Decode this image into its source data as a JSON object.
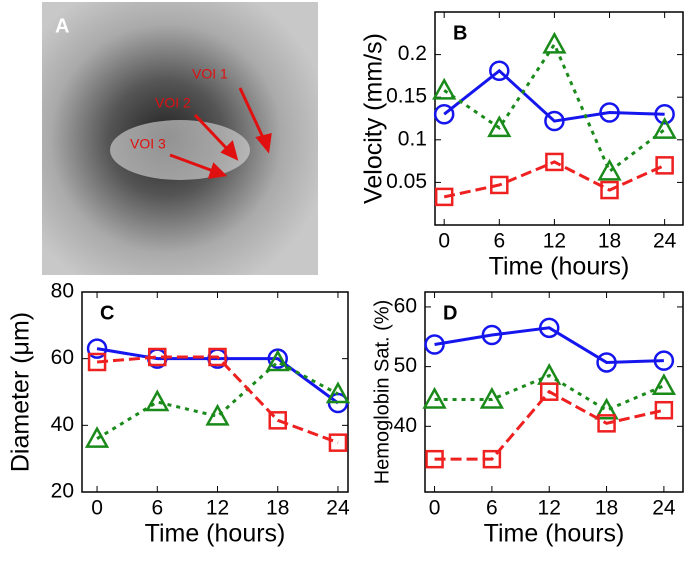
{
  "panel_a": {
    "label": "A",
    "annotations": [
      "VOI 1",
      "VOI 2",
      "VOI 3"
    ]
  },
  "chart_data": [
    {
      "type": "line",
      "label": "B",
      "xlabel": "Time (hours)",
      "ylabel": "Velocity (mm/s)",
      "x": [
        0,
        6,
        12,
        18,
        24
      ],
      "xlim": [
        -1,
        26
      ],
      "xticks": [
        0,
        6,
        12,
        18,
        24
      ],
      "ylim": [
        0,
        0.25
      ],
      "yticks": [
        0.05,
        0.1,
        0.15,
        0.2
      ],
      "series": [
        {
          "color": "#1515ee",
          "marker": "circle",
          "dashed": false,
          "values": [
            0.13,
            0.181,
            0.122,
            0.132,
            0.13
          ]
        },
        {
          "color": "#1a8a1a",
          "marker": "triangle",
          "dashed": true,
          "values": [
            0.158,
            0.114,
            0.212,
            0.063,
            0.112
          ]
        },
        {
          "color": "#ee2020",
          "marker": "square",
          "dashed": true,
          "values": [
            0.033,
            0.047,
            0.074,
            0.041,
            0.07
          ]
        }
      ]
    },
    {
      "type": "line",
      "label": "C",
      "xlabel": "Time (hours)",
      "ylabel": "Diameter (μm)",
      "x": [
        0,
        6,
        12,
        18,
        24
      ],
      "xlim": [
        -1.5,
        25
      ],
      "xticks": [
        0,
        6,
        12,
        18,
        24
      ],
      "ylim": [
        20,
        80
      ],
      "yticks": [
        20,
        40,
        60,
        80
      ],
      "series": [
        {
          "color": "#1515ee",
          "marker": "circle",
          "dashed": false,
          "values": [
            63,
            60,
            60,
            60,
            46.7
          ]
        },
        {
          "color": "#1a8a1a",
          "marker": "triangle",
          "dashed": true,
          "values": [
            36,
            47,
            42.7,
            59,
            49.4
          ]
        },
        {
          "color": "#ee2020",
          "marker": "square",
          "dashed": true,
          "values": [
            59,
            60.5,
            60.5,
            41.5,
            34.8
          ]
        }
      ]
    },
    {
      "type": "line",
      "label": "D",
      "xlabel": "Time (hours)",
      "ylabel": "Hemoglobin Sat. (%)",
      "x": [
        0,
        6,
        12,
        18,
        24
      ],
      "xlim": [
        -1,
        26
      ],
      "xticks": [
        0,
        6,
        12,
        18,
        24
      ],
      "ylim": [
        29,
        62.5
      ],
      "yticks": [
        40,
        50,
        60
      ],
      "series": [
        {
          "color": "#1515ee",
          "marker": "circle",
          "dashed": false,
          "values": [
            53.7,
            55.3,
            56.5,
            50.7,
            51
          ]
        },
        {
          "color": "#1a8a1a",
          "marker": "triangle",
          "dashed": true,
          "values": [
            44.5,
            44.5,
            48.5,
            42.7,
            46.8
          ]
        },
        {
          "color": "#ee2020",
          "marker": "square",
          "dashed": true,
          "values": [
            34.5,
            34.5,
            45.8,
            40.5,
            42.7
          ]
        }
      ]
    }
  ]
}
